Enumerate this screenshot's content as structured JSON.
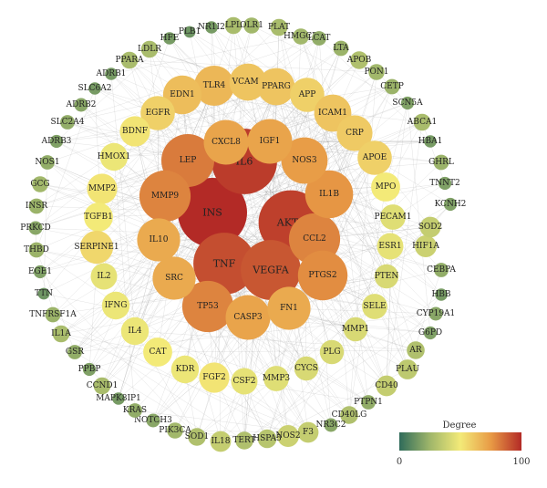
{
  "legend": {
    "title": "Degree",
    "min_label": "0",
    "max_label": "100",
    "gradient_colors": [
      "#2f6b5a",
      "#9fb66a",
      "#f3ea78",
      "#e89a45",
      "#b32a26"
    ]
  },
  "nodes": [
    {
      "label": "INS",
      "degree": 100
    },
    {
      "label": "IL6",
      "degree": 96
    },
    {
      "label": "AKT1",
      "degree": 95
    },
    {
      "label": "TNF",
      "degree": 92
    },
    {
      "label": "VEGFA",
      "degree": 90
    },
    {
      "label": "LEP",
      "degree": 82
    },
    {
      "label": "MMP9",
      "degree": 80
    },
    {
      "label": "CCL2",
      "degree": 80
    },
    {
      "label": "TP53",
      "degree": 80
    },
    {
      "label": "PTGS2",
      "degree": 78
    },
    {
      "label": "IL1B",
      "degree": 76
    },
    {
      "label": "NOS3",
      "degree": 74
    },
    {
      "label": "IGF1",
      "degree": 72
    },
    {
      "label": "CXCL8",
      "degree": 72
    },
    {
      "label": "IL10",
      "degree": 70
    },
    {
      "label": "SRC",
      "degree": 70
    },
    {
      "label": "CASP3",
      "degree": 72
    },
    {
      "label": "FN1",
      "degree": 70
    },
    {
      "label": "TLR4",
      "degree": 66
    },
    {
      "label": "EDN1",
      "degree": 64
    },
    {
      "label": "VCAM1",
      "degree": 62
    },
    {
      "label": "PPARG",
      "degree": 62
    },
    {
      "label": "APP",
      "degree": 58
    },
    {
      "label": "ICAM1",
      "degree": 62
    },
    {
      "label": "CRP",
      "degree": 60
    },
    {
      "label": "APOE",
      "degree": 58
    },
    {
      "label": "MPO",
      "degree": 50
    },
    {
      "label": "EGFR",
      "degree": 58
    },
    {
      "label": "BDNF",
      "degree": 52
    },
    {
      "label": "HMOX1",
      "degree": 48
    },
    {
      "label": "MMP2",
      "degree": 52
    },
    {
      "label": "TGFB1",
      "degree": 50
    },
    {
      "label": "SERPINE1",
      "degree": 56
    },
    {
      "label": "IL2",
      "degree": 46
    },
    {
      "label": "IFNG",
      "degree": 48
    },
    {
      "label": "IL4",
      "degree": 48
    },
    {
      "label": "CAT",
      "degree": 50
    },
    {
      "label": "KDR",
      "degree": 48
    },
    {
      "label": "FGF2",
      "degree": 52
    },
    {
      "label": "CSF2",
      "degree": 46
    },
    {
      "label": "MMP3",
      "degree": 44
    },
    {
      "label": "CYCS",
      "degree": 42
    },
    {
      "label": "PLG",
      "degree": 42
    },
    {
      "label": "MMP1",
      "degree": 42
    },
    {
      "label": "SELE",
      "degree": 44
    },
    {
      "label": "PTEN",
      "degree": 42
    },
    {
      "label": "ESR1",
      "degree": 46
    },
    {
      "label": "PECAM1",
      "degree": 44
    },
    {
      "label": "HIF1A",
      "degree": 38
    },
    {
      "label": "SOD2",
      "degree": 36
    },
    {
      "label": "LPL",
      "degree": 28
    },
    {
      "label": "OLR1",
      "degree": 26
    },
    {
      "label": "PLAT",
      "degree": 28
    },
    {
      "label": "HMGCR",
      "degree": 26
    },
    {
      "label": "LCAT",
      "degree": 22
    },
    {
      "label": "LTA",
      "degree": 24
    },
    {
      "label": "APOB",
      "degree": 30
    },
    {
      "label": "PON1",
      "degree": 26
    },
    {
      "label": "CETP",
      "degree": 24
    },
    {
      "label": "SCN5A",
      "degree": 18
    },
    {
      "label": "ABCA1",
      "degree": 28
    },
    {
      "label": "HBA1",
      "degree": 16
    },
    {
      "label": "GHRL",
      "degree": 24
    },
    {
      "label": "TNNT2",
      "degree": 18
    },
    {
      "label": "KCNH2",
      "degree": 18
    },
    {
      "label": "CEBPA",
      "degree": 22
    },
    {
      "label": "HBB",
      "degree": 16
    },
    {
      "label": "CYP19A1",
      "degree": 20
    },
    {
      "label": "G6PD",
      "degree": 18
    },
    {
      "label": "AR",
      "degree": 30
    },
    {
      "label": "PLAU",
      "degree": 34
    },
    {
      "label": "CD40",
      "degree": 36
    },
    {
      "label": "PTPN1",
      "degree": 22
    },
    {
      "label": "CD40LG",
      "degree": 30
    },
    {
      "label": "NR3C2",
      "degree": 20
    },
    {
      "label": "F3",
      "degree": 36
    },
    {
      "label": "NOS2",
      "degree": 38
    },
    {
      "label": "HSPA5",
      "degree": 32
    },
    {
      "label": "TERT",
      "degree": 30
    },
    {
      "label": "IL18",
      "degree": 36
    },
    {
      "label": "SOD1",
      "degree": 30
    },
    {
      "label": "PIK3CA",
      "degree": 26
    },
    {
      "label": "NOTCH3",
      "degree": 20
    },
    {
      "label": "KRAS",
      "degree": 22
    },
    {
      "label": "MAPK8IP1",
      "degree": 16
    },
    {
      "label": "CCND1",
      "degree": 28
    },
    {
      "label": "PPBP",
      "degree": 18
    },
    {
      "label": "GSR",
      "degree": 22
    },
    {
      "label": "IL1A",
      "degree": 28
    },
    {
      "label": "TNFRSF1A",
      "degree": 24
    },
    {
      "label": "TTN",
      "degree": 14
    },
    {
      "label": "EGE1",
      "degree": 18
    },
    {
      "label": "THBD",
      "degree": 24
    },
    {
      "label": "PRKCD",
      "degree": 20
    },
    {
      "label": "INSR",
      "degree": 24
    },
    {
      "label": "GCG",
      "degree": 26
    },
    {
      "label": "NOS1",
      "degree": 22
    },
    {
      "label": "ADRB3",
      "degree": 18
    },
    {
      "label": "SLC2A4",
      "degree": 22
    },
    {
      "label": "ADRB2",
      "degree": 20
    },
    {
      "label": "SLC6A2",
      "degree": 16
    },
    {
      "label": "ADRB1",
      "degree": 16
    },
    {
      "label": "PPARA",
      "degree": 28
    },
    {
      "label": "LDLR",
      "degree": 28
    },
    {
      "label": "HFE",
      "degree": 16
    },
    {
      "label": "PLB1",
      "degree": 14
    },
    {
      "label": "NR1I2",
      "degree": 16
    }
  ]
}
